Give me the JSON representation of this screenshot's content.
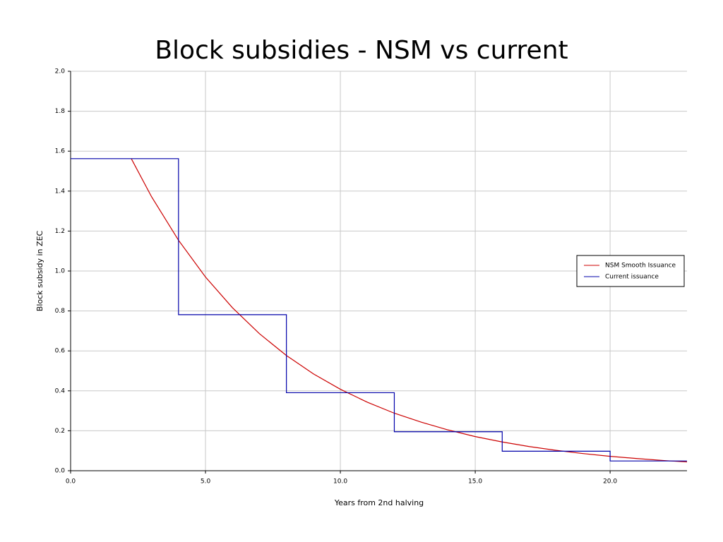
{
  "chart_data": {
    "type": "line",
    "title": "Block subsidies - NSM vs current",
    "x_label": "Years from 2nd halving",
    "y_label": "Block subsidy in ZEC",
    "xlim": [
      0,
      22.85
    ],
    "ylim": [
      0,
      2.0
    ],
    "xticks": [
      {
        "value": 0,
        "label": "0.0"
      },
      {
        "value": 5,
        "label": "5.0"
      },
      {
        "value": 10,
        "label": "10.0"
      },
      {
        "value": 15,
        "label": "15.0"
      },
      {
        "value": 20,
        "label": "20.0"
      }
    ],
    "yticks": [
      {
        "value": 0,
        "label": "0.0"
      },
      {
        "value": 0.2,
        "label": "0.2"
      },
      {
        "value": 0.4,
        "label": "0.4"
      },
      {
        "value": 0.6,
        "label": "0.6"
      },
      {
        "value": 0.8,
        "label": "0.8"
      },
      {
        "value": 1.0,
        "label": "1.0"
      },
      {
        "value": 1.2,
        "label": "1.2"
      },
      {
        "value": 1.4,
        "label": "1.4"
      },
      {
        "value": 1.6,
        "label": "1.6"
      },
      {
        "value": 1.8,
        "label": "1.8"
      },
      {
        "value": 2.0,
        "label": "2.0"
      }
    ],
    "grid": true,
    "legend": "right",
    "series": [
      {
        "name": "NSM Smooth Issuance",
        "color": "#cc0000",
        "x": [
          2.25,
          3,
          4,
          5,
          6,
          7,
          8,
          9,
          10,
          11,
          12,
          13,
          14,
          15,
          16,
          17,
          18,
          19,
          20,
          21,
          22,
          22.85
        ],
        "values": [
          1.5625,
          1.372,
          1.154,
          0.97,
          0.816,
          0.686,
          0.577,
          0.485,
          0.408,
          0.343,
          0.288,
          0.243,
          0.204,
          0.171,
          0.144,
          0.121,
          0.102,
          0.086,
          0.072,
          0.061,
          0.051,
          0.044
        ]
      },
      {
        "name": "Current issuance",
        "color": "#0000aa",
        "x": [
          0,
          4,
          4,
          8,
          8,
          12,
          12,
          16,
          16,
          20,
          20,
          22.85
        ],
        "values": [
          1.5625,
          1.5625,
          0.78125,
          0.78125,
          0.390625,
          0.390625,
          0.1953125,
          0.1953125,
          0.09765625,
          0.09765625,
          0.048828125,
          0.048828125
        ]
      }
    ]
  }
}
